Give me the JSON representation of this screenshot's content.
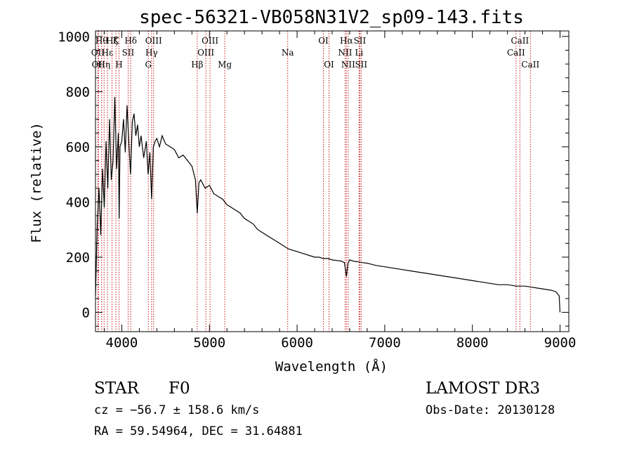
{
  "chart_data": {
    "type": "line",
    "title": "spec-56321-VB058N31V2_sp09-143.fits",
    "xlabel": "Wavelength (Å)",
    "ylabel": "Flux (relative)",
    "xlim": [
      3700,
      9100
    ],
    "ylim": [
      -70,
      1020
    ],
    "xticks": [
      4000,
      5000,
      6000,
      7000,
      8000,
      9000
    ],
    "yticks": [
      0,
      200,
      400,
      600,
      800,
      1000
    ],
    "xtick_labels": [
      "4000",
      "5000",
      "6000",
      "7000",
      "8000",
      "9000"
    ],
    "ytick_labels": [
      "0",
      "200",
      "400",
      "600",
      "800",
      "1000"
    ],
    "series": [
      {
        "name": "flux",
        "color": "#000000",
        "x": [
          3700,
          3720,
          3740,
          3760,
          3780,
          3800,
          3820,
          3840,
          3860,
          3880,
          3900,
          3920,
          3940,
          3960,
          3970,
          3980,
          4000,
          4020,
          4040,
          4060,
          4080,
          4100,
          4120,
          4140,
          4160,
          4180,
          4200,
          4220,
          4250,
          4280,
          4300,
          4320,
          4340,
          4360,
          4380,
          4400,
          4430,
          4460,
          4500,
          4550,
          4600,
          4650,
          4700,
          4750,
          4800,
          4840,
          4861,
          4880,
          4900,
          4950,
          5000,
          5050,
          5100,
          5150,
          5200,
          5250,
          5300,
          5350,
          5400,
          5450,
          5500,
          5550,
          5600,
          5650,
          5700,
          5750,
          5800,
          5850,
          5900,
          5950,
          6000,
          6050,
          6100,
          6150,
          6200,
          6250,
          6300,
          6350,
          6400,
          6450,
          6500,
          6540,
          6563,
          6580,
          6600,
          6650,
          6700,
          6750,
          6800,
          6900,
          7000,
          7100,
          7200,
          7300,
          7400,
          7500,
          7600,
          7700,
          7800,
          7900,
          8000,
          8100,
          8200,
          8300,
          8400,
          8500,
          8600,
          8700,
          8800,
          8900,
          8950,
          8990,
          9000
        ],
        "y": [
          60,
          320,
          450,
          280,
          520,
          380,
          620,
          450,
          700,
          480,
          550,
          780,
          520,
          650,
          340,
          600,
          620,
          700,
          580,
          750,
          620,
          500,
          690,
          720,
          640,
          680,
          600,
          640,
          560,
          620,
          500,
          580,
          410,
          600,
          620,
          630,
          600,
          640,
          610,
          600,
          590,
          560,
          570,
          550,
          530,
          480,
          360,
          470,
          480,
          450,
          460,
          430,
          420,
          410,
          390,
          380,
          370,
          360,
          340,
          330,
          320,
          300,
          290,
          280,
          270,
          260,
          250,
          240,
          230,
          225,
          220,
          215,
          210,
          205,
          200,
          200,
          195,
          195,
          190,
          188,
          186,
          180,
          130,
          178,
          190,
          185,
          183,
          180,
          178,
          170,
          165,
          160,
          155,
          150,
          145,
          140,
          135,
          130,
          125,
          120,
          115,
          110,
          105,
          100,
          100,
          95,
          95,
          90,
          85,
          80,
          75,
          60,
          0
        ]
      }
    ],
    "spectral_lines": [
      {
        "x": 3727,
        "label": "OII",
        "row": 2
      },
      {
        "x": 3734,
        "label": "OII",
        "row": 3
      },
      {
        "x": 3770,
        "label": "Hθ",
        "row": 1
      },
      {
        "x": 3798,
        "label": "Hη",
        "row": 3
      },
      {
        "x": 3835,
        "label": "Hε",
        "row": 2
      },
      {
        "x": 3889,
        "label": "Hζ",
        "row": 1
      },
      {
        "x": 3933,
        "label": "K",
        "row": 1
      },
      {
        "x": 3968,
        "label": "H",
        "row": 3
      },
      {
        "x": 4072,
        "label": "SII",
        "row": 2
      },
      {
        "x": 4102,
        "label": "Hδ",
        "row": 1
      },
      {
        "x": 4303,
        "label": "G",
        "row": 3
      },
      {
        "x": 4340,
        "label": "Hγ",
        "row": 2
      },
      {
        "x": 4363,
        "label": "OIII",
        "row": 1
      },
      {
        "x": 4861,
        "label": "Hβ",
        "row": 3
      },
      {
        "x": 4959,
        "label": "OIII",
        "row": 2
      },
      {
        "x": 5007,
        "label": "OIII",
        "row": 1
      },
      {
        "x": 5175,
        "label": "Mg",
        "row": 3
      },
      {
        "x": 5893,
        "label": "Na",
        "row": 2
      },
      {
        "x": 6300,
        "label": "OI",
        "row": 1
      },
      {
        "x": 6364,
        "label": "OI",
        "row": 3
      },
      {
        "x": 6548,
        "label": "NII",
        "row": 2
      },
      {
        "x": 6563,
        "label": "Hα",
        "row": 1
      },
      {
        "x": 6583,
        "label": "NII",
        "row": 3
      },
      {
        "x": 6707,
        "label": "Li",
        "row": 2
      },
      {
        "x": 6716,
        "label": "SII",
        "row": 1
      },
      {
        "x": 6731,
        "label": "SII",
        "row": 3
      },
      {
        "x": 8498,
        "label": "CaII",
        "row": 2
      },
      {
        "x": 8542,
        "label": "CaII",
        "row": 1
      },
      {
        "x": 8662,
        "label": "CaII",
        "row": 3
      }
    ],
    "line_color": "#c00000"
  },
  "info": {
    "class_label": "STAR",
    "subclass": "F0",
    "survey": "LAMOST DR3",
    "cz": "cz = −56.7 ± 158.6 km/s",
    "obs_date": "Obs-Date: 20130128",
    "coords": "RA =  59.54964, DEC =  31.64881"
  }
}
